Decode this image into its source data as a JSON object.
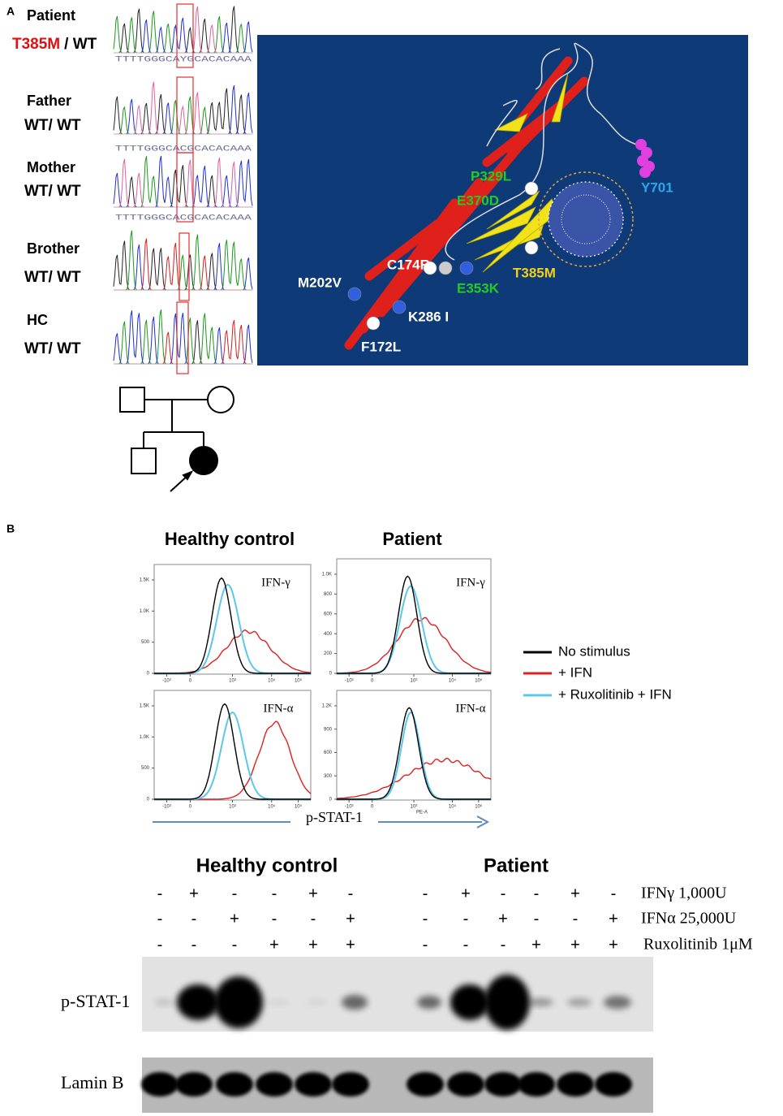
{
  "panel_a": {
    "label": "A",
    "subjects": [
      {
        "name": "Patient",
        "mutation": "T385M",
        "genotype": "/ WT",
        "sequence": "TTTTGGGCAYGCACACAAA"
      },
      {
        "name": "Father",
        "genotype": "WT/ WT",
        "sequence": "TTTTGGGCACGCACACAAA"
      },
      {
        "name": "Mother",
        "genotype": "WT/ WT",
        "sequence": "TTTTGGGCACGCACACAAA"
      },
      {
        "name": "Brother",
        "genotype": "WT/ WT"
      },
      {
        "name": "HC",
        "genotype": "WT/ WT"
      }
    ],
    "structure_labels": [
      "P329L",
      "E370D",
      "Y701",
      "C174R",
      "T385M",
      "E353K",
      "M202V",
      "K286 I",
      "F172L"
    ]
  },
  "panel_b": {
    "label": "B",
    "flow": {
      "columns": [
        "Healthy control",
        "Patient"
      ],
      "plots": [
        {
          "stimulus": "IFN-γ",
          "yticks": [
            "1.5K",
            "1.0K",
            "500",
            "0"
          ]
        },
        {
          "stimulus": "IFN-γ",
          "yticks": [
            "1.0K",
            "800",
            "600",
            "400",
            "200",
            "0"
          ]
        },
        {
          "stimulus": "IFN-α",
          "yticks": [
            "1.5K",
            "1.0K",
            "500",
            "0"
          ]
        },
        {
          "stimulus": "IFN-α",
          "yticks": [
            "1.2K",
            "900",
            "600",
            "300",
            "0"
          ],
          "axis_label": "PE-A"
        }
      ],
      "xticks": [
        "-10³",
        "0",
        "10³",
        "10⁴",
        "10⁵"
      ],
      "xaxis_label": "p-STAT-1",
      "legend": [
        "No stimulus",
        "+ IFN",
        "+ Ruxolitinib + IFN"
      ]
    },
    "western": {
      "groups": [
        "Healthy control",
        "Patient"
      ],
      "treatments": [
        {
          "label": "IFNγ 1,000U",
          "signs": [
            "-",
            "+",
            "-",
            "-",
            "+",
            "-",
            "-",
            "+",
            "-",
            "-",
            "+",
            "-"
          ]
        },
        {
          "label": "IFNα 25,000U",
          "signs": [
            "-",
            "-",
            "+",
            "-",
            "-",
            "+",
            "-",
            "-",
            "+",
            "-",
            "-",
            "+"
          ]
        },
        {
          "label": "Ruxolitinib 1μM",
          "signs": [
            "-",
            "-",
            "-",
            "+",
            "+",
            "+",
            "-",
            "-",
            "-",
            "+",
            "+",
            "+"
          ]
        }
      ],
      "blots": [
        "p-STAT-1",
        "Lamin B"
      ]
    }
  }
}
